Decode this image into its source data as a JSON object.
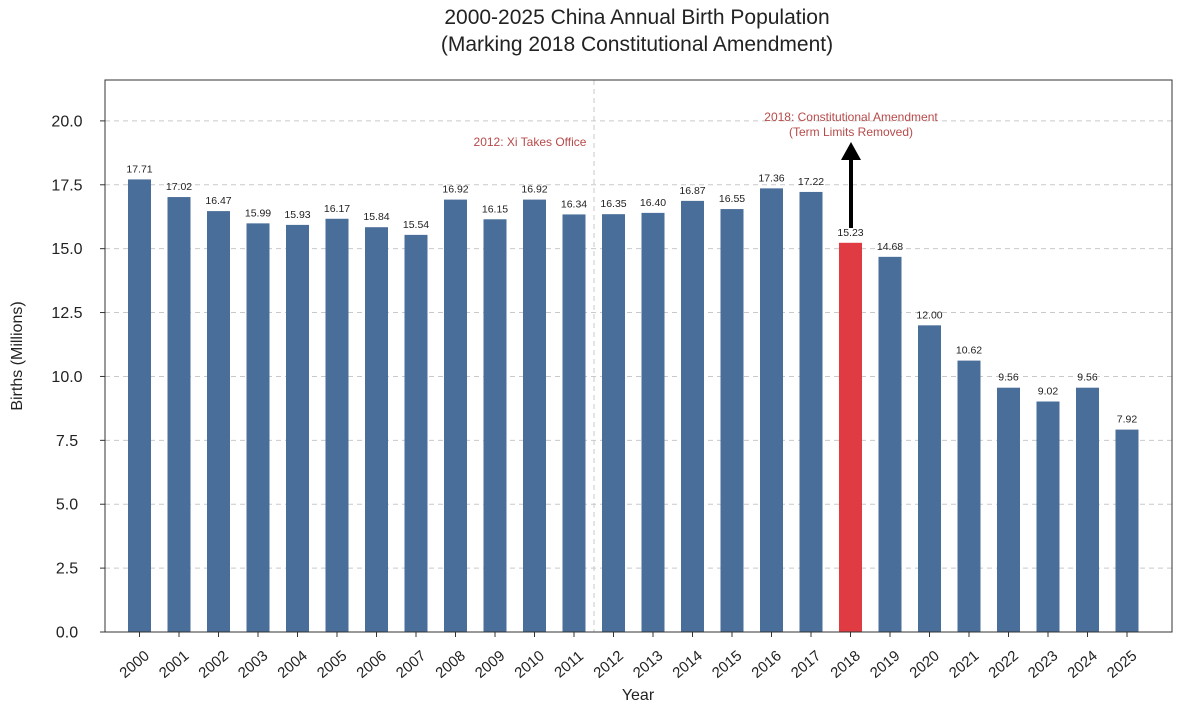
{
  "chart_data": {
    "type": "bar",
    "title_line1": "2000-2025 China Annual Birth Population",
    "title_line2": "(Marking 2018 Constitutional Amendment)",
    "xlabel": "Year",
    "ylabel": "Births (Millions)",
    "ylim": [
      0,
      21.6
    ],
    "yticks": [
      "0.0",
      "2.5",
      "5.0",
      "7.5",
      "10.0",
      "12.5",
      "15.0",
      "17.5",
      "20.0"
    ],
    "ytick_values": [
      0,
      2.5,
      5,
      7.5,
      10,
      12.5,
      15,
      17.5,
      20
    ],
    "grid": true,
    "categories": [
      "2000",
      "2001",
      "2002",
      "2003",
      "2004",
      "2005",
      "2006",
      "2007",
      "2008",
      "2009",
      "2010",
      "2011",
      "2012",
      "2013",
      "2014",
      "2015",
      "2016",
      "2017",
      "2018",
      "2019",
      "2020",
      "2021",
      "2022",
      "2023",
      "2024",
      "2025"
    ],
    "values": [
      17.71,
      17.02,
      16.47,
      15.99,
      15.93,
      16.17,
      15.84,
      15.54,
      16.92,
      16.15,
      16.92,
      16.34,
      16.35,
      16.4,
      16.87,
      16.55,
      17.36,
      17.22,
      15.23,
      14.68,
      12.0,
      10.62,
      9.56,
      9.02,
      9.56,
      7.92
    ],
    "value_labels": [
      "17.71",
      "17.02",
      "16.47",
      "15.99",
      "15.93",
      "16.17",
      "15.84",
      "15.54",
      "16.92",
      "16.15",
      "16.92",
      "16.34",
      "16.35",
      "16.40",
      "16.87",
      "16.55",
      "17.36",
      "17.22",
      "15.23",
      "14.68",
      "12.00",
      "10.62",
      "9.56",
      "9.02",
      "9.56",
      "7.92"
    ],
    "bar_color": "#4a6e9a",
    "highlight_index": 18,
    "highlight_color": "#e03b42",
    "annotations": {
      "xi": {
        "text": "2012: Xi Takes Office",
        "color": "#b84a4a",
        "at_category": "2012"
      },
      "amendment_line1": "2018: Constitutional Amendment",
      "amendment_line2": "(Term Limits Removed)",
      "amendment_color": "#b84a4a",
      "amendment_category": "2018"
    }
  }
}
